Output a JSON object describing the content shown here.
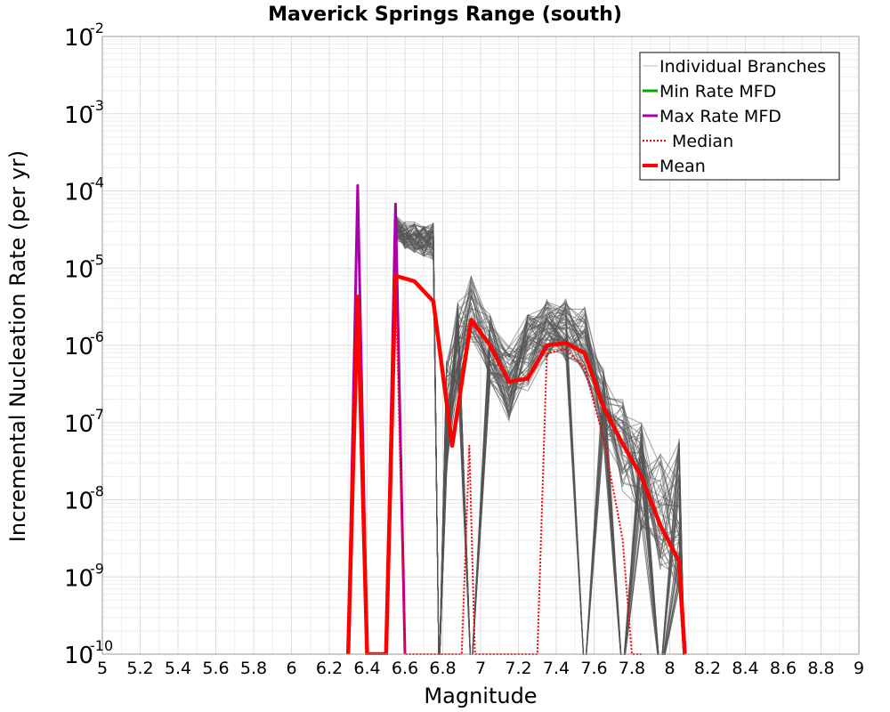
{
  "chart_data": {
    "type": "line",
    "title": "Maverick Springs Range (south)",
    "xlabel": "Magnitude",
    "ylabel": "Incremental Nucleation Rate (per yr)",
    "xlim": [
      5,
      9
    ],
    "ylim_log10": [
      -10,
      -2
    ],
    "yscale": "log",
    "grid": true,
    "legend_position": "top-right",
    "x_ticks": [
      "5",
      "5.2",
      "5.4",
      "5.6",
      "5.8",
      "6",
      "6.2",
      "6.4",
      "6.6",
      "6.8",
      "7",
      "7.2",
      "7.4",
      "7.6",
      "7.8",
      "8",
      "8.2",
      "8.4",
      "8.6",
      "8.8",
      "9"
    ],
    "y_ticks": [
      {
        "base": "10",
        "exp": "-10"
      },
      {
        "base": "10",
        "exp": "-9"
      },
      {
        "base": "10",
        "exp": "-8"
      },
      {
        "base": "10",
        "exp": "-7"
      },
      {
        "base": "10",
        "exp": "-6"
      },
      {
        "base": "10",
        "exp": "-5"
      },
      {
        "base": "10",
        "exp": "-4"
      },
      {
        "base": "10",
        "exp": "-3"
      },
      {
        "base": "10",
        "exp": "-2"
      }
    ],
    "legend": [
      {
        "label": "Individual Branches",
        "color": "#bbbbbb",
        "style": "solid-thin"
      },
      {
        "label": "Min Rate MFD",
        "color": "#00aa00",
        "style": "solid"
      },
      {
        "label": "Max Rate MFD",
        "color": "#aa00aa",
        "style": "solid"
      },
      {
        "label": "Median",
        "color": "#ff0000",
        "style": "dotted"
      },
      {
        "label": "Mean",
        "color": "#ff0000",
        "style": "solid-thick"
      }
    ],
    "branch_count": 70,
    "branch_color": "#555555",
    "series": [
      {
        "name": "Mean",
        "color": "#ff0000",
        "x": [
          6.3,
          6.35,
          6.4,
          6.5,
          6.55,
          6.65,
          6.75,
          6.85,
          6.95,
          7.05,
          7.15,
          7.25,
          7.35,
          7.45,
          7.55,
          7.65,
          7.75,
          7.85,
          7.95,
          8.05,
          8.08
        ],
        "log10_y": [
          -10,
          -5.37,
          -10,
          -10,
          -5.1,
          -5.17,
          -5.43,
          -7.3,
          -5.67,
          -6.0,
          -6.47,
          -6.43,
          -6.0,
          -5.97,
          -6.1,
          -6.8,
          -7.27,
          -7.7,
          -8.33,
          -8.8,
          -10
        ]
      },
      {
        "name": "Median",
        "color": "#ff0000",
        "x": [
          6.3,
          6.35,
          6.4,
          6.5,
          6.55,
          6.6,
          6.9,
          6.94,
          6.97,
          7.3,
          7.35,
          7.45,
          7.55,
          7.65,
          7.75,
          7.8,
          7.85
        ],
        "log10_y": [
          -10,
          -5.37,
          -10,
          -10,
          -5.1,
          -10,
          -10,
          -7.3,
          -10,
          -10,
          -6.1,
          -6.05,
          -6.3,
          -7.2,
          -8.5,
          -10,
          -10
        ]
      },
      {
        "name": "Max Rate MFD",
        "color": "#aa00aa",
        "x": [
          6.3,
          6.35,
          6.4,
          6.5,
          6.55,
          6.6
        ],
        "log10_y": [
          -10,
          -3.93,
          -10,
          -10,
          -4.17,
          -10
        ]
      },
      {
        "name": "Min Rate MFD",
        "color": "#00aa00",
        "x": [],
        "log10_y": []
      }
    ]
  }
}
